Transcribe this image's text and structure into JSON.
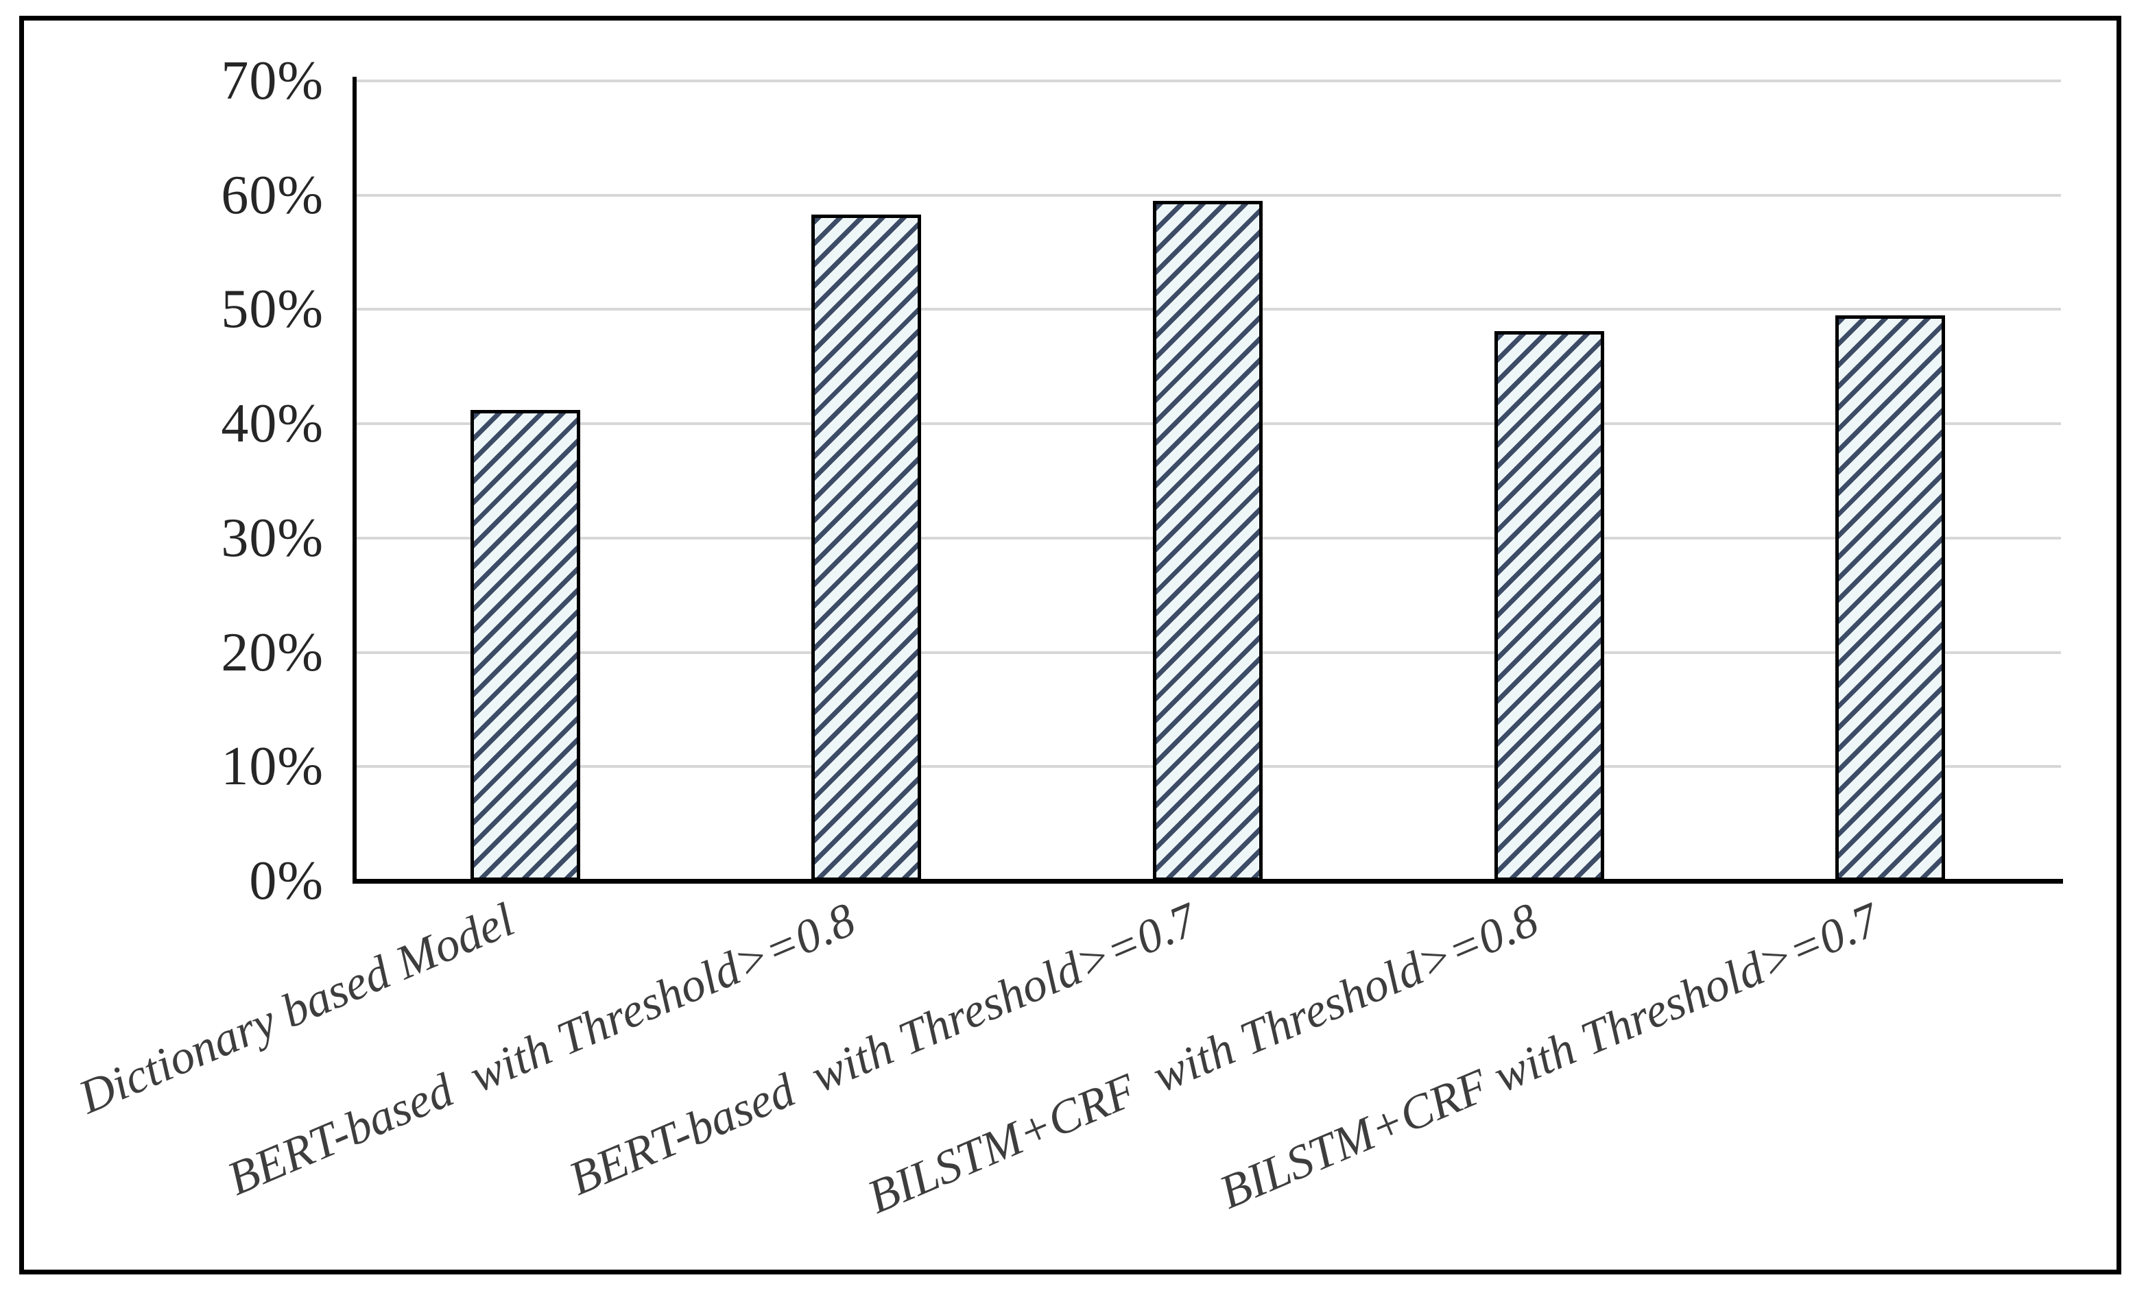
{
  "figure": {
    "background_color": "#ffffff",
    "border_color": "#000000"
  },
  "chart_data": {
    "type": "bar",
    "title": "",
    "xlabel": "",
    "ylabel": "",
    "categories": [
      "Dictionary based Model",
      "BERT-based  with Threshold>=0.8",
      "BERT-based  with Threshold>=0.7",
      "BILSTM+CRF  with Threshold>=0.8",
      "BILSTM+CRF with Threshold>=0.7"
    ],
    "values": [
      41.2,
      58.3,
      59.5,
      48.1,
      49.5
    ],
    "unit": "%",
    "ylim": [
      0,
      70
    ],
    "ytick_step": 10,
    "ytick_labels": [
      "0%",
      "10%",
      "20%",
      "30%",
      "40%",
      "50%",
      "60%",
      "70%"
    ],
    "grid": true,
    "legend": false,
    "category_label_rotation_deg": -23,
    "style": {
      "bar_fill": "#eef6f8",
      "bar_hatch_color": "#3d4c66",
      "bar_hatch": "diagonal-forward",
      "bar_border_color": "#000000",
      "gridline_color": "#d7d7d7",
      "axis_color": "#000000",
      "ytick_text_color": "#262626",
      "category_text_color": "#3d3d3d"
    }
  }
}
